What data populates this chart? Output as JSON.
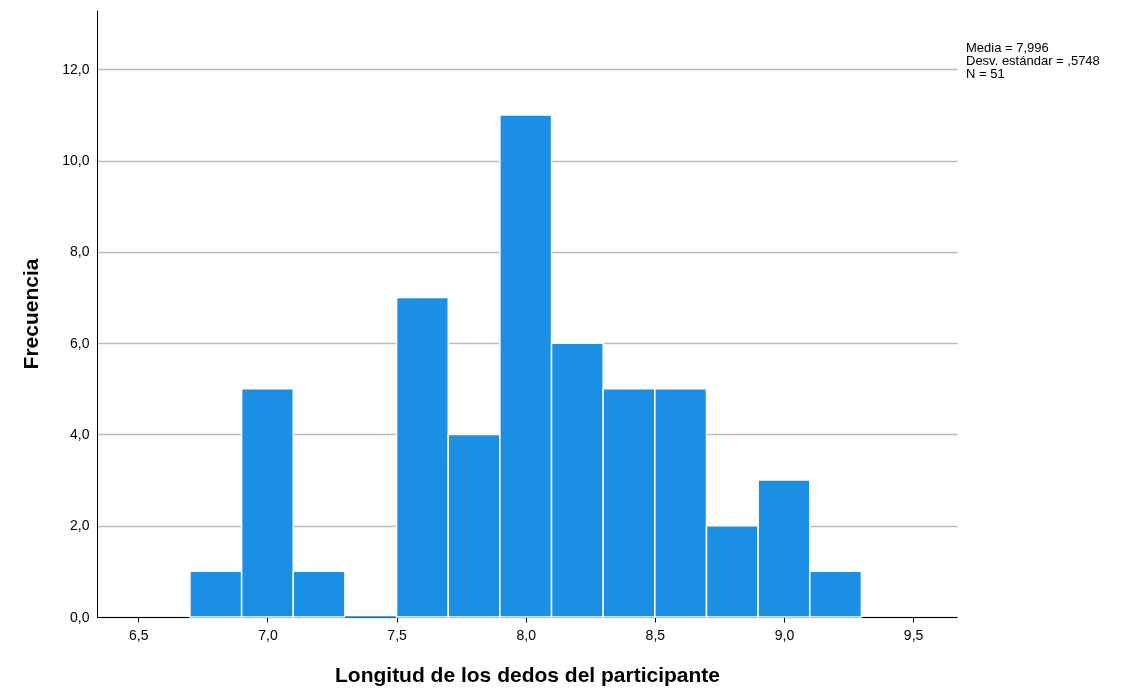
{
  "chart_data": {
    "type": "histogram",
    "xlabel": "Longitud de los dedos del participante",
    "ylabel": "Frecuencia",
    "bins": [
      6.7,
      6.9,
      7.1,
      7.3,
      7.5,
      7.7,
      7.9,
      8.1,
      8.3,
      8.5,
      8.7,
      8.9,
      9.1,
      9.3
    ],
    "values": [
      1,
      5,
      1,
      0,
      7,
      4,
      11,
      6,
      5,
      5,
      2,
      3,
      1
    ],
    "color": "#1a8fe3",
    "xlim": [
      6.34,
      9.67
    ],
    "ylim": [
      0,
      13.3
    ],
    "xticks": [
      {
        "value": 6.5,
        "label": "6,5"
      },
      {
        "value": 7,
        "label": "7,0"
      },
      {
        "value": 7.5,
        "label": "7,5"
      },
      {
        "value": 8,
        "label": "8,0"
      },
      {
        "value": 8.5,
        "label": "8,5"
      },
      {
        "value": 9,
        "label": "9,0"
      },
      {
        "value": 9.5,
        "label": "9,5"
      }
    ],
    "yticks": [
      {
        "value": 0,
        "label": "0,0"
      },
      {
        "value": 2,
        "label": "2,0"
      },
      {
        "value": 4,
        "label": "4,0"
      },
      {
        "value": 6,
        "label": "6,0"
      },
      {
        "value": 8,
        "label": "8,0"
      },
      {
        "value": 10,
        "label": "10,0"
      },
      {
        "value": 12,
        "label": "12,0"
      }
    ],
    "grid": "y",
    "annotations": [
      "Media = 7,996",
      "Desv. estándar = ,5748",
      "N = 51"
    ]
  }
}
